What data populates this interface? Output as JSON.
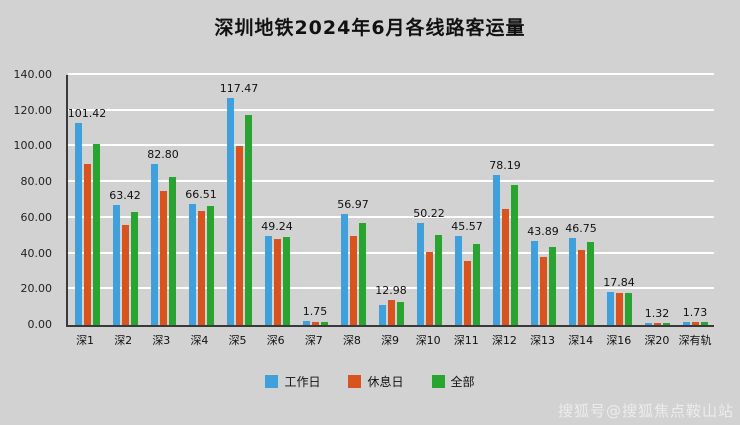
{
  "page": {
    "title": "深圳地铁2024年6月各线路客运量"
  },
  "watermark": "搜狐号@搜狐焦点鞍山站",
  "chart_data": {
    "type": "bar",
    "title": "深圳地铁2024年6月各线路客运量",
    "categories": [
      "深1",
      "深2",
      "深3",
      "深4",
      "深5",
      "深6",
      "深7",
      "深8",
      "深9",
      "深10",
      "深11",
      "深12",
      "深13",
      "深14",
      "深16",
      "深20",
      "深有轨"
    ],
    "series": [
      {
        "name": "工作日",
        "color": "#3fa0dc",
        "values": [
          113,
          67,
          90,
          68,
          127,
          50,
          2.0,
          62,
          11,
          57,
          50,
          84,
          47,
          49,
          18.5,
          1.3,
          1.8
        ]
      },
      {
        "name": "休息日",
        "color": "#d9531e",
        "values": [
          90,
          56,
          75,
          64,
          100,
          48,
          1.5,
          50,
          14,
          41,
          36,
          65,
          38,
          42,
          18,
          1.3,
          1.8
        ]
      },
      {
        "name": "全部",
        "color": "#2aa430",
        "values": [
          101.42,
          63.42,
          82.8,
          66.51,
          117.47,
          49.24,
          1.75,
          56.97,
          12.98,
          50.22,
          45.57,
          78.19,
          43.89,
          46.75,
          17.84,
          1.32,
          1.73
        ]
      }
    ],
    "labels": [
      "101.42",
      "63.42",
      "82.80",
      "66.51",
      "117.47",
      "49.24",
      "1.75",
      "56.97",
      "12.98",
      "50.22",
      "45.57",
      "78.19",
      "43.89",
      "46.75",
      "17.84",
      "1.32",
      "1.73"
    ],
    "ylim": [
      0,
      140
    ],
    "ytick_step": 20,
    "yticks": [
      "140.00",
      "120.00",
      "100.00",
      "80.00",
      "60.00",
      "40.00",
      "20.00",
      "0.00"
    ],
    "legend": [
      "工作日",
      "休息日",
      "全部"
    ],
    "legend_position": "bottom",
    "grid": true
  }
}
